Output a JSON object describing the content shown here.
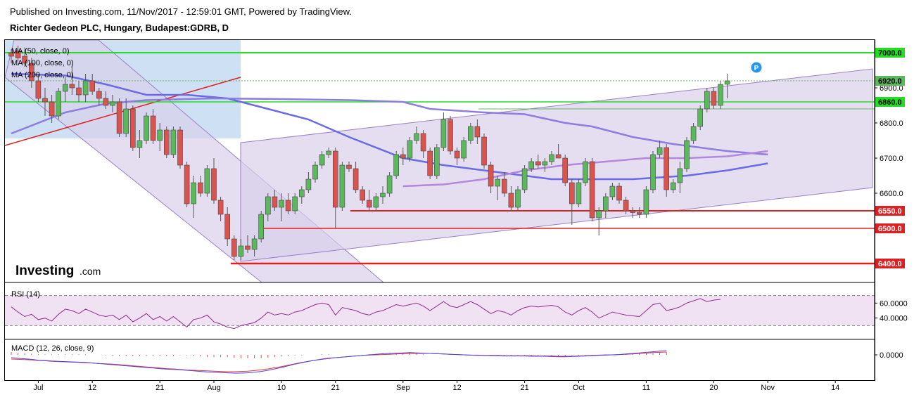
{
  "header": {
    "published": "Published on Investing.com, 11/Nov/2017 - 12:59:01 GMT, Powered by TradingView.",
    "symbol": "Richter Gedeon PLC, Hungary, Budapest:GDRB, D"
  },
  "logo": {
    "brand": "Investing",
    "suffix": ".com"
  },
  "legend": {
    "ma50": "MA (50, close, 0)",
    "ma100": "MA (100, close, 0)",
    "ma200": "MA (200, close, 0)",
    "rsi": "RSI (14)",
    "macd": "MACD (12, 26, close, 9)"
  },
  "marker": "P",
  "colors": {
    "up": "#5cb85c",
    "down": "#d9534f",
    "ma50": "#6a6ae6",
    "ma100": "#8e7de0",
    "ma200": "#b487de",
    "support": "#e02020",
    "resistance": "#22dd22",
    "channel_fill": "#d8d0ea",
    "rsi_line": "#8e2b8e",
    "macd_line": "#4444ee",
    "signal_line": "#ee3333"
  },
  "chart_data": {
    "type": "candlestick",
    "title": "Richter Gedeon PLC, Hungary, Budapest:GDRB, D",
    "price_axis": {
      "ylim": [
        6360,
        7040
      ],
      "ticks": [
        "6600.0",
        "6700.0",
        "6800.0",
        "6900.0"
      ]
    },
    "price_labels": [
      {
        "text": "7000.0",
        "value": 7000,
        "color": "#22dd22",
        "kind": "resistance"
      },
      {
        "text": "6920.0",
        "value": 6920,
        "color": "#5cb85c",
        "kind": "last"
      },
      {
        "text": "6860.0",
        "value": 6860,
        "color": "#22dd22",
        "kind": "resistance"
      },
      {
        "text": "6550.0",
        "value": 6550,
        "color": "#e02020",
        "kind": "support"
      },
      {
        "text": "6500.0",
        "value": 6500,
        "color": "#e02020",
        "kind": "support"
      },
      {
        "text": "6400.0",
        "value": 6400,
        "color": "#e02020",
        "kind": "support"
      }
    ],
    "x_axis": {
      "labels": [
        {
          "text": "Jul",
          "bar": 4
        },
        {
          "text": "12",
          "bar": 12
        },
        {
          "text": "21",
          "bar": 22
        },
        {
          "text": "Aug",
          "bar": 30
        },
        {
          "text": "10",
          "bar": 40
        },
        {
          "text": "21",
          "bar": 48
        },
        {
          "text": "Sep",
          "bar": 58
        },
        {
          "text": "12",
          "bar": 66
        },
        {
          "text": "21",
          "bar": 76
        },
        {
          "text": "Oct",
          "bar": 84
        },
        {
          "text": "11",
          "bar": 94
        },
        {
          "text": "20",
          "bar": 104
        },
        {
          "text": "Nov",
          "bar": 112
        },
        {
          "text": "14",
          "bar": 122
        }
      ]
    },
    "candles": [
      [
        7000,
        7010,
        6970,
        6990
      ],
      [
        7005,
        7020,
        6975,
        6985
      ],
      [
        6990,
        7015,
        6960,
        6970
      ],
      [
        6970,
        6985,
        6900,
        6920
      ],
      [
        6920,
        6940,
        6860,
        6870
      ],
      [
        6870,
        6900,
        6820,
        6860
      ],
      [
        6860,
        6880,
        6800,
        6820
      ],
      [
        6820,
        6900,
        6810,
        6890
      ],
      [
        6890,
        6930,
        6860,
        6910
      ],
      [
        6910,
        6960,
        6880,
        6900
      ],
      [
        6900,
        6920,
        6860,
        6880
      ],
      [
        6880,
        6940,
        6860,
        6920
      ],
      [
        6920,
        6940,
        6880,
        6890
      ],
      [
        6890,
        6900,
        6850,
        6870
      ],
      [
        6870,
        6890,
        6840,
        6850
      ],
      [
        6850,
        6880,
        6830,
        6860
      ],
      [
        6860,
        6870,
        6760,
        6770
      ],
      [
        6770,
        6870,
        6760,
        6840
      ],
      [
        6840,
        6850,
        6720,
        6730
      ],
      [
        6730,
        6780,
        6700,
        6750
      ],
      [
        6750,
        6830,
        6740,
        6820
      ],
      [
        6820,
        6840,
        6740,
        6750
      ],
      [
        6750,
        6800,
        6720,
        6780
      ],
      [
        6780,
        6790,
        6700,
        6710
      ],
      [
        6710,
        6790,
        6700,
        6780
      ],
      [
        6780,
        6790,
        6670,
        6680
      ],
      [
        6680,
        6690,
        6560,
        6570
      ],
      [
        6570,
        6650,
        6530,
        6630
      ],
      [
        6630,
        6650,
        6590,
        6600
      ],
      [
        6600,
        6680,
        6590,
        6670
      ],
      [
        6670,
        6700,
        6570,
        6580
      ],
      [
        6580,
        6590,
        6520,
        6540
      ],
      [
        6540,
        6560,
        6450,
        6470
      ],
      [
        6470,
        6480,
        6410,
        6420
      ],
      [
        6420,
        6470,
        6410,
        6450
      ],
      [
        6450,
        6480,
        6430,
        6440
      ],
      [
        6440,
        6480,
        6420,
        6470
      ],
      [
        6470,
        6550,
        6460,
        6540
      ],
      [
        6540,
        6600,
        6520,
        6590
      ],
      [
        6590,
        6610,
        6550,
        6560
      ],
      [
        6560,
        6600,
        6520,
        6580
      ],
      [
        6580,
        6600,
        6540,
        6550
      ],
      [
        6550,
        6600,
        6540,
        6590
      ],
      [
        6590,
        6620,
        6570,
        6610
      ],
      [
        6610,
        6660,
        6600,
        6640
      ],
      [
        6640,
        6690,
        6630,
        6680
      ],
      [
        6680,
        6720,
        6670,
        6710
      ],
      [
        6710,
        6730,
        6700,
        6720
      ],
      [
        6720,
        6730,
        6500,
        6560
      ],
      [
        6560,
        6690,
        6550,
        6680
      ],
      [
        6680,
        6690,
        6660,
        6670
      ],
      [
        6670,
        6690,
        6600,
        6610
      ],
      [
        6610,
        6620,
        6570,
        6580
      ],
      [
        6580,
        6610,
        6550,
        6560
      ],
      [
        6560,
        6600,
        6550,
        6590
      ],
      [
        6590,
        6620,
        6570,
        6600
      ],
      [
        6600,
        6660,
        6590,
        6650
      ],
      [
        6650,
        6720,
        6640,
        6710
      ],
      [
        6710,
        6730,
        6680,
        6700
      ],
      [
        6700,
        6760,
        6690,
        6750
      ],
      [
        6750,
        6790,
        6740,
        6770
      ],
      [
        6770,
        6780,
        6700,
        6720
      ],
      [
        6720,
        6730,
        6640,
        6650
      ],
      [
        6650,
        6740,
        6640,
        6730
      ],
      [
        6730,
        6830,
        6720,
        6810
      ],
      [
        6810,
        6820,
        6710,
        6720
      ],
      [
        6720,
        6730,
        6680,
        6700
      ],
      [
        6700,
        6760,
        6690,
        6750
      ],
      [
        6750,
        6800,
        6740,
        6790
      ],
      [
        6790,
        6810,
        6740,
        6760
      ],
      [
        6760,
        6770,
        6670,
        6680
      ],
      [
        6680,
        6690,
        6600,
        6620
      ],
      [
        6620,
        6650,
        6580,
        6640
      ],
      [
        6640,
        6660,
        6590,
        6600
      ],
      [
        6600,
        6620,
        6550,
        6560
      ],
      [
        6560,
        6620,
        6550,
        6610
      ],
      [
        6610,
        6680,
        6600,
        6670
      ],
      [
        6670,
        6700,
        6660,
        6690
      ],
      [
        6690,
        6710,
        6670,
        6680
      ],
      [
        6680,
        6700,
        6660,
        6690
      ],
      [
        6690,
        6720,
        6680,
        6710
      ],
      [
        6710,
        6740,
        6700,
        6700
      ],
      [
        6700,
        6710,
        6620,
        6630
      ],
      [
        6630,
        6640,
        6510,
        6570
      ],
      [
        6570,
        6640,
        6560,
        6630
      ],
      [
        6630,
        6700,
        6620,
        6690
      ],
      [
        6690,
        6700,
        6520,
        6530
      ],
      [
        6530,
        6560,
        6480,
        6550
      ],
      [
        6550,
        6600,
        6530,
        6590
      ],
      [
        6590,
        6630,
        6580,
        6620
      ],
      [
        6620,
        6630,
        6570,
        6580
      ],
      [
        6580,
        6590,
        6540,
        6550
      ],
      [
        6550,
        6560,
        6530,
        6545
      ],
      [
        6545,
        6560,
        6530,
        6540
      ],
      [
        6540,
        6620,
        6530,
        6610
      ],
      [
        6610,
        6720,
        6600,
        6710
      ],
      [
        6710,
        6750,
        6700,
        6730
      ],
      [
        6730,
        6740,
        6590,
        6610
      ],
      [
        6610,
        6640,
        6600,
        6630
      ],
      [
        6630,
        6690,
        6600,
        6670
      ],
      [
        6670,
        6760,
        6660,
        6750
      ],
      [
        6750,
        6800,
        6740,
        6790
      ],
      [
        6790,
        6850,
        6780,
        6840
      ],
      [
        6840,
        6900,
        6830,
        6890
      ],
      [
        6890,
        6900,
        6840,
        6850
      ],
      [
        6850,
        6920,
        6840,
        6910
      ],
      [
        6910,
        6940,
        6870,
        6920
      ]
    ],
    "ma": {
      "ma50": [
        [
          0,
          6770
        ],
        [
          8,
          6830
        ],
        [
          14,
          6855
        ],
        [
          20,
          6865
        ],
        [
          30,
          6870
        ],
        [
          40,
          6868
        ],
        [
          50,
          6865
        ],
        [
          58,
          6860
        ],
        [
          62,
          6840
        ],
        [
          70,
          6830
        ],
        [
          76,
          6825
        ],
        [
          82,
          6800
        ],
        [
          86,
          6790
        ],
        [
          92,
          6760
        ],
        [
          98,
          6740
        ],
        [
          106,
          6720
        ],
        [
          112,
          6710
        ]
      ],
      "ma100": [
        [
          0,
          6940
        ],
        [
          8,
          6935
        ],
        [
          14,
          6910
        ],
        [
          20,
          6880
        ],
        [
          26,
          6880
        ],
        [
          32,
          6870
        ],
        [
          38,
          6840
        ],
        [
          44,
          6810
        ],
        [
          50,
          6760
        ],
        [
          58,
          6700
        ],
        [
          64,
          6680
        ],
        [
          72,
          6660
        ],
        [
          80,
          6640
        ],
        [
          86,
          6640
        ],
        [
          92,
          6640
        ],
        [
          100,
          6650
        ],
        [
          106,
          6665
        ],
        [
          112,
          6685
        ]
      ],
      "ma200": [
        [
          58,
          6620
        ],
        [
          64,
          6625
        ],
        [
          70,
          6640
        ],
        [
          76,
          6665
        ],
        [
          82,
          6680
        ],
        [
          88,
          6690
        ],
        [
          94,
          6700
        ],
        [
          100,
          6700
        ],
        [
          106,
          6705
        ],
        [
          112,
          6720
        ]
      ]
    },
    "rsi": {
      "ticks": [
        "60.0000",
        "40.0000"
      ],
      "ylim": [
        20,
        80
      ],
      "values": [
        55,
        48,
        42,
        45,
        38,
        40,
        36,
        45,
        52,
        50,
        46,
        52,
        48,
        44,
        42,
        44,
        38,
        44,
        35,
        40,
        46,
        38,
        42,
        36,
        42,
        35,
        28,
        38,
        40,
        44,
        35,
        32,
        28,
        26,
        30,
        32,
        34,
        40,
        48,
        44,
        46,
        44,
        48,
        50,
        54,
        58,
        60,
        58,
        44,
        54,
        52,
        50,
        46,
        44,
        48,
        50,
        54,
        58,
        56,
        58,
        60,
        56,
        50,
        56,
        62,
        56,
        54,
        58,
        62,
        58,
        52,
        46,
        50,
        48,
        44,
        50,
        54,
        56,
        55,
        56,
        57,
        55,
        48,
        44,
        50,
        54,
        48,
        40,
        44,
        48,
        46,
        44,
        43,
        42,
        50,
        58,
        60,
        50,
        52,
        55,
        60,
        63,
        66,
        62,
        64,
        65
      ]
    },
    "macd": {
      "ticks": [
        "0.0000"
      ],
      "macd": [
        -20,
        -25,
        -28,
        -32,
        -38,
        -40,
        -44,
        -46,
        -48,
        -50,
        -52,
        -54,
        -58,
        -62,
        -66,
        -70,
        -74,
        -78,
        -82,
        -86,
        -90,
        -94,
        -98,
        -102,
        -104,
        -106,
        -110,
        -114,
        -118,
        -122,
        -124,
        -126,
        -128,
        -130,
        -130,
        -128,
        -124,
        -118,
        -110,
        -100,
        -90,
        -78,
        -66,
        -56,
        -46,
        -38,
        -30,
        -24,
        -20,
        -16,
        -12,
        -8,
        -4,
        0,
        4,
        8,
        10,
        12,
        14,
        16,
        14,
        12,
        10,
        8,
        6,
        4,
        2,
        0,
        -2,
        -4,
        -4,
        -6,
        -6,
        -8,
        -8,
        -8,
        -8,
        -10,
        -10,
        -10,
        -12,
        -14,
        -14,
        -12,
        -10,
        -8,
        -6,
        -4,
        -2,
        0,
        2,
        6,
        10,
        14,
        18,
        22,
        26,
        30
      ],
      "signal": [
        -30,
        -32,
        -34,
        -36,
        -40,
        -42,
        -46,
        -48,
        -50,
        -52,
        -54,
        -56,
        -58,
        -62,
        -64,
        -66,
        -70,
        -74,
        -78,
        -82,
        -86,
        -90,
        -94,
        -98,
        -100,
        -104,
        -108,
        -110,
        -112,
        -114,
        -116,
        -118,
        -120,
        -120,
        -118,
        -116,
        -112,
        -106,
        -100,
        -92,
        -84,
        -74,
        -64,
        -54,
        -46,
        -38,
        -32,
        -26,
        -20,
        -16,
        -12,
        -8,
        -4,
        -2,
        0,
        2,
        4,
        6,
        8,
        10,
        10,
        10,
        10,
        8,
        6,
        4,
        2,
        0,
        -2,
        -2,
        -4,
        -4,
        -4,
        -6,
        -6,
        -6,
        -6,
        -6,
        -8,
        -8,
        -8,
        -10,
        -10,
        -10,
        -8,
        -6,
        -4,
        -2,
        0,
        0,
        2,
        4,
        6,
        10,
        12,
        16,
        18,
        20
      ]
    }
  }
}
